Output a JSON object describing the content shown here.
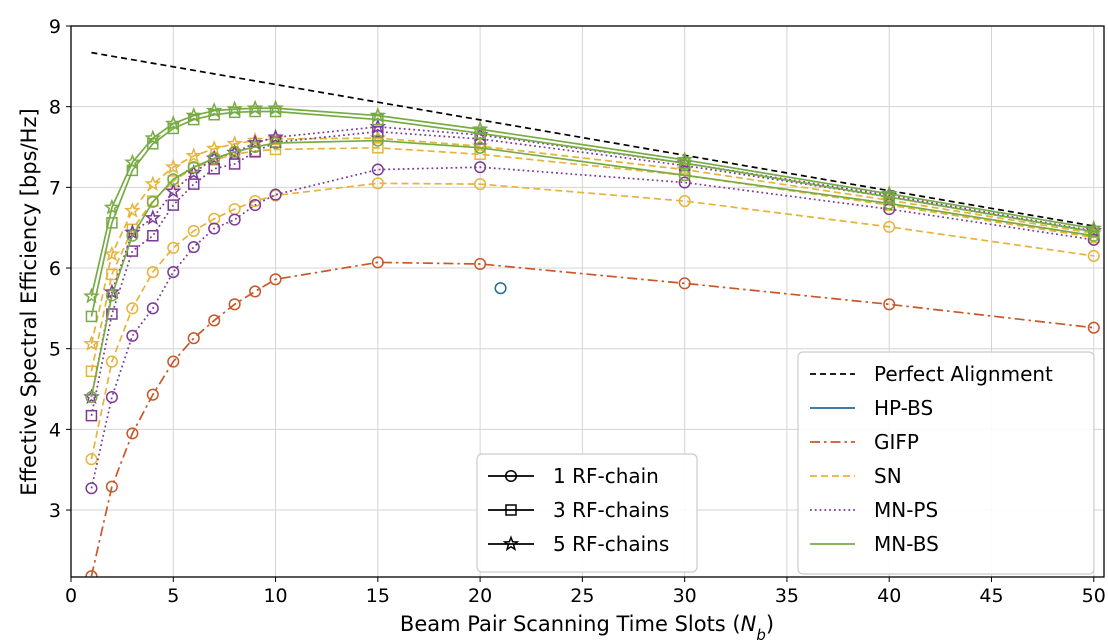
{
  "chart_data": {
    "type": "line",
    "xlabel": "Beam Pair Scanning Time Slots (",
    "xlabel_symbol": "N",
    "xlabel_sub": "b",
    "xlabel_end": ")",
    "ylabel": "Effective Spectral Efficiency [bps/Hz]",
    "xlim": [
      0,
      50.5
    ],
    "ylim": [
      2.17,
      9.0
    ],
    "xticks": [
      "0",
      "5",
      "10",
      "15",
      "20",
      "25",
      "30",
      "35",
      "40",
      "45",
      "50"
    ],
    "yticks": [
      "3",
      "4",
      "5",
      "6",
      "7",
      "8",
      "9"
    ],
    "grid": true,
    "legend_right_placement": "lower-right",
    "legend_left_placement": "lower-center",
    "x": [
      1,
      2,
      3,
      4,
      5,
      6,
      7,
      8,
      9,
      10,
      15,
      20,
      30,
      40,
      50
    ],
    "perfect_alignment": {
      "name": "Perfect Alignment",
      "color": "#000000",
      "x": [
        1,
        50
      ],
      "values": [
        8.67,
        6.52
      ]
    },
    "methods": [
      {
        "name": "HP-BS",
        "color": "#1f6e94",
        "dash": "solid"
      },
      {
        "name": "GIFP",
        "color": "#c8582a",
        "dash": "dashdot"
      },
      {
        "name": "SN",
        "color": "#e6b43c",
        "dash": "dashed"
      },
      {
        "name": "MN-PS",
        "color": "#7b3a96",
        "dash": "dotted"
      },
      {
        "name": "MN-BS",
        "color": "#77ab43",
        "dash": "solid"
      }
    ],
    "rf_chains": [
      {
        "name": "1 RF-chain",
        "marker": "circle"
      },
      {
        "name": "3 RF-chains",
        "marker": "square"
      },
      {
        "name": "5 RF-chains",
        "marker": "star"
      }
    ],
    "series": [
      {
        "method": "GIFP",
        "marker": "circle",
        "values": [
          2.18,
          3.29,
          3.95,
          4.43,
          4.84,
          5.13,
          5.35,
          5.55,
          5.71,
          5.86,
          6.07,
          6.05,
          5.81,
          5.55,
          5.26
        ]
      },
      {
        "method": "SN",
        "marker": "circle",
        "values": [
          3.63,
          4.84,
          5.5,
          5.95,
          6.25,
          6.46,
          6.61,
          6.73,
          6.83,
          6.9,
          7.05,
          7.04,
          6.83,
          6.51,
          6.15
        ]
      },
      {
        "method": "SN",
        "marker": "square",
        "values": [
          4.72,
          5.92,
          6.48,
          6.83,
          7.08,
          7.24,
          7.34,
          7.41,
          7.45,
          7.47,
          7.49,
          7.41,
          7.15,
          6.78,
          6.38
        ]
      },
      {
        "method": "SN",
        "marker": "star",
        "values": [
          5.06,
          6.17,
          6.71,
          7.04,
          7.25,
          7.39,
          7.48,
          7.54,
          7.58,
          7.6,
          7.61,
          7.51,
          7.22,
          6.84,
          6.43
        ]
      },
      {
        "method": "MN-PS",
        "marker": "circle",
        "values": [
          3.27,
          4.4,
          5.16,
          5.5,
          5.95,
          6.26,
          6.49,
          6.6,
          6.78,
          6.91,
          7.22,
          7.25,
          7.06,
          6.73,
          6.35
        ]
      },
      {
        "method": "MN-PS",
        "marker": "square",
        "values": [
          4.17,
          5.43,
          6.21,
          6.4,
          6.78,
          7.04,
          7.23,
          7.29,
          7.44,
          7.56,
          7.69,
          7.6,
          7.27,
          6.88,
          6.45
        ]
      },
      {
        "method": "MN-PS",
        "marker": "star",
        "values": [
          4.4,
          5.7,
          6.44,
          6.62,
          6.95,
          7.18,
          7.36,
          7.43,
          7.55,
          7.62,
          7.75,
          7.65,
          7.3,
          6.9,
          6.46
        ]
      },
      {
        "method": "MN-BS",
        "marker": "circle",
        "values": [
          4.4,
          5.66,
          6.4,
          6.82,
          7.1,
          7.25,
          7.36,
          7.44,
          7.5,
          7.55,
          7.58,
          7.49,
          7.15,
          6.8,
          6.4
        ]
      },
      {
        "method": "MN-BS",
        "marker": "square",
        "values": [
          5.4,
          6.56,
          7.21,
          7.54,
          7.73,
          7.84,
          7.9,
          7.93,
          7.94,
          7.94,
          7.84,
          7.67,
          7.3,
          6.88,
          6.45
        ]
      },
      {
        "method": "MN-BS",
        "marker": "star",
        "values": [
          5.65,
          6.75,
          7.31,
          7.61,
          7.79,
          7.89,
          7.95,
          7.97,
          7.98,
          7.98,
          7.89,
          7.72,
          7.34,
          6.92,
          6.49
        ]
      }
    ],
    "hp_bs_point": {
      "method": "HP-BS",
      "marker": "circle",
      "x": 21,
      "y": 5.75
    }
  }
}
